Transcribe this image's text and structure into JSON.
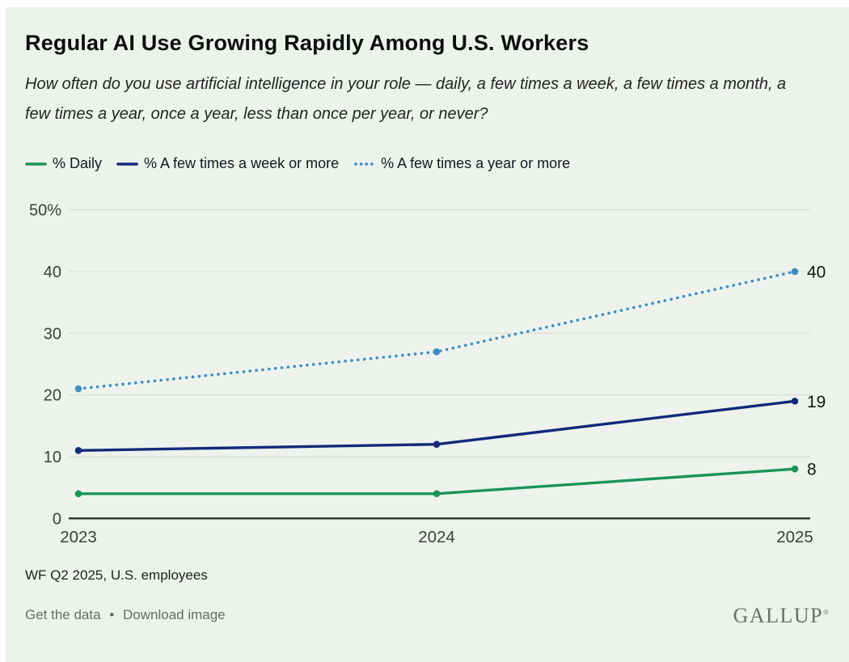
{
  "page": {
    "title": "Regular AI Use Growing Rapidly Among U.S. Workers",
    "subtitle": "How often do you use artificial intelligence in your role — daily, a few times a week, a few times a month, a few times a year, once a year, less than once per year, or never?"
  },
  "chart_data": {
    "type": "line",
    "x": [
      "2023",
      "2024",
      "2025"
    ],
    "series": [
      {
        "name": "% Daily",
        "values": [
          4,
          4,
          8
        ],
        "color": "#189455",
        "line_style": "solid",
        "end_label": "8"
      },
      {
        "name": "% A few times a week or more",
        "values": [
          11,
          12,
          19
        ],
        "color": "#12297a",
        "line_style": "solid",
        "end_label": "19"
      },
      {
        "name": "% A few times a year or more",
        "values": [
          21,
          27,
          40
        ],
        "color": "#3e8ec6",
        "line_style": "dotted",
        "end_label": "40"
      }
    ],
    "ylim": [
      0,
      50
    ],
    "yticks": [
      {
        "value": 50,
        "label": "50%"
      },
      {
        "value": 40,
        "label": "40"
      },
      {
        "value": 30,
        "label": "30"
      },
      {
        "value": 20,
        "label": "20"
      },
      {
        "value": 10,
        "label": "10"
      },
      {
        "value": 0,
        "label": "0"
      }
    ],
    "grid": true,
    "legend_position": "top"
  },
  "footer": {
    "source": "WF Q2 2025, U.S. employees",
    "links": [
      "Get the data",
      "Download image"
    ],
    "separator": "•",
    "brand": "GALLUP",
    "brand_mark": "®"
  },
  "theme": {
    "background": "#edf3ec",
    "grid_color": "#d9ddd3",
    "axis_color": "#2d2d2d",
    "tick_color": "#3e3e3e",
    "end_label_color": "#161616"
  }
}
